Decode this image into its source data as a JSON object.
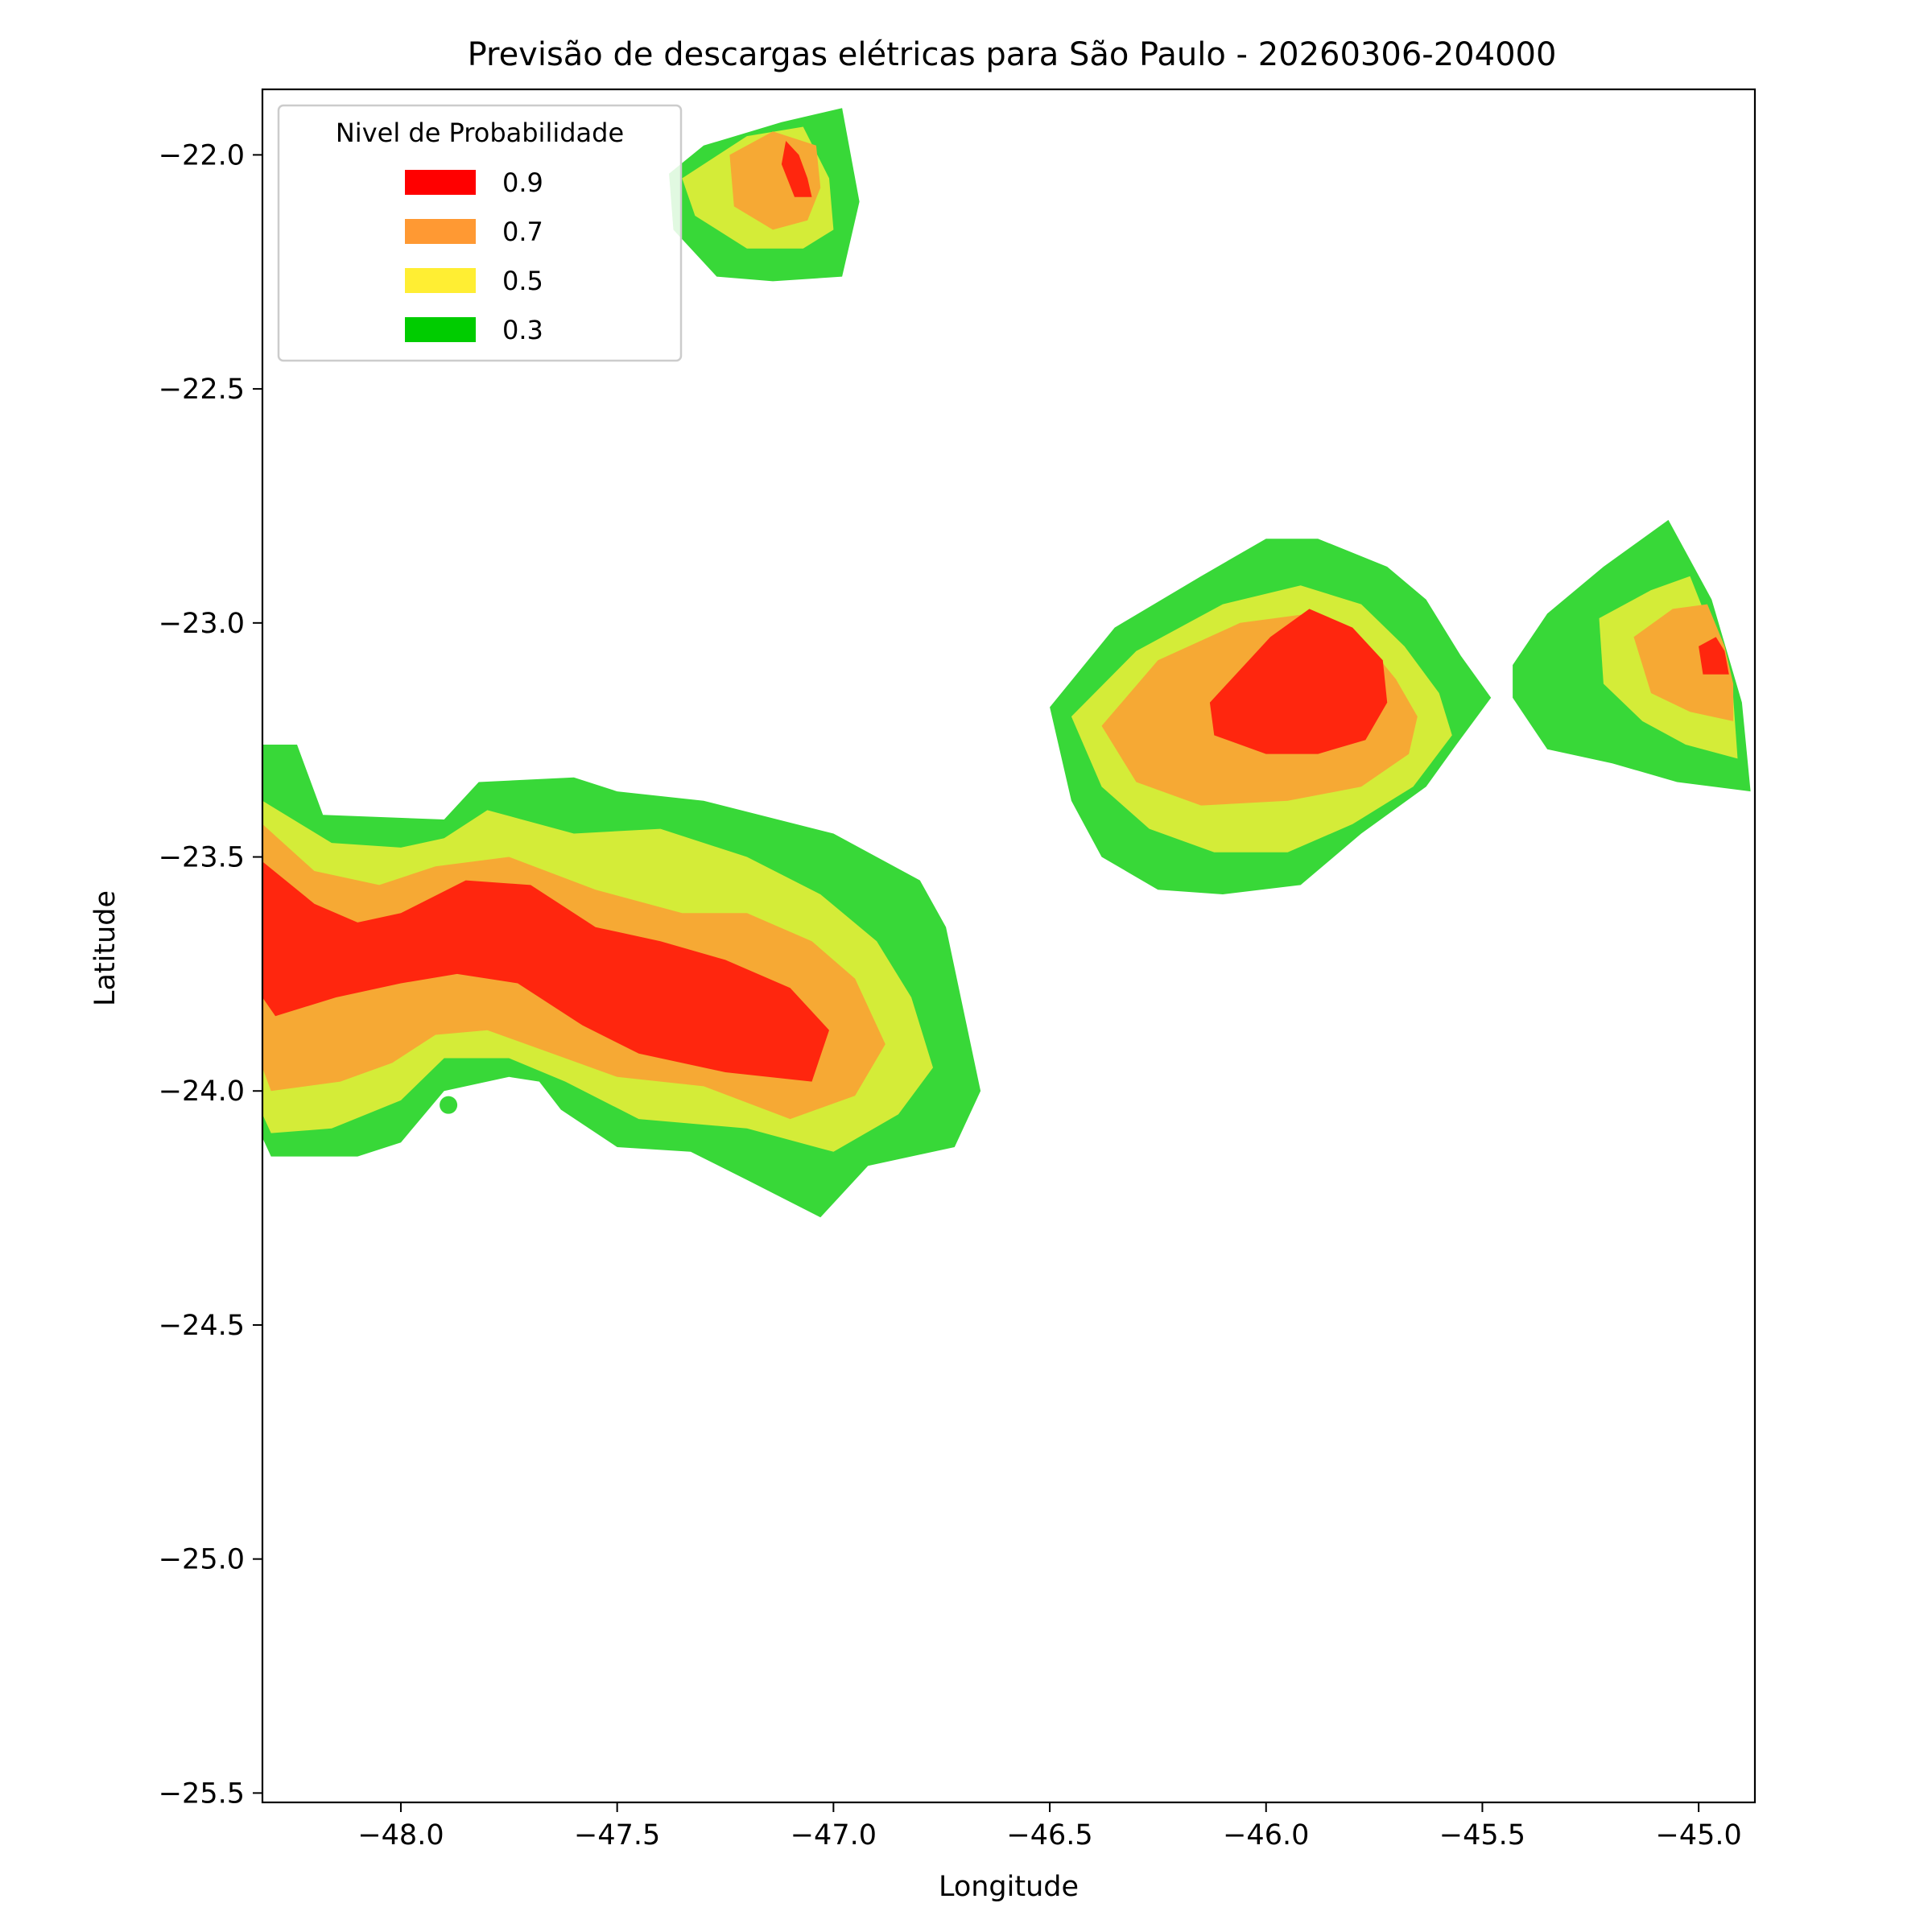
{
  "chart_data": {
    "type": "contour",
    "title": "Previsão de descargas elétricas para São Paulo - 20260306-204000",
    "xlabel": "Longitude",
    "ylabel": "Latitude",
    "xlim": [
      -48.32,
      -44.87
    ],
    "ylim": [
      -25.52,
      -21.86
    ],
    "xticks": [
      -48.0,
      -47.5,
      -47.0,
      -46.5,
      -46.0,
      -45.5,
      -45.0
    ],
    "xtick_labels": [
      "−48.0",
      "−47.5",
      "−47.0",
      "−46.5",
      "−46.0",
      "−45.5",
      "−45.0"
    ],
    "yticks": [
      -22.0,
      -22.5,
      -23.0,
      -23.5,
      -24.0,
      -24.5,
      -25.0,
      -25.5
    ],
    "ytick_labels": [
      "−22.0",
      "−22.5",
      "−23.0",
      "−23.5",
      "−24.0",
      "−24.5",
      "−25.0",
      "−25.5"
    ],
    "grid": false,
    "legend": {
      "title": "Nivel de Probabilidade",
      "placement": "top-left",
      "entries": [
        {
          "label": "0.9",
          "color": "#ff0000"
        },
        {
          "label": "0.7",
          "color": "#ff9933"
        },
        {
          "label": "0.5",
          "color": "#ffee33"
        },
        {
          "label": "0.3",
          "color": "#00cc00"
        }
      ]
    },
    "fill_colors": {
      "0.3": "#38d838",
      "0.5": "#d4ec38",
      "0.7": "#f6a934",
      "0.9": "#ff260e"
    },
    "regions": [
      {
        "name": "west-cell",
        "levels": [
          {
            "level": "0.3",
            "points": [
              [
                -48.32,
                -23.26
              ],
              [
                -48.24,
                -23.26
              ],
              [
                -48.18,
                -23.41
              ],
              [
                -47.9,
                -23.42
              ],
              [
                -47.82,
                -23.34
              ],
              [
                -47.6,
                -23.33
              ],
              [
                -47.5,
                -23.36
              ],
              [
                -47.3,
                -23.38
              ],
              [
                -47.0,
                -23.45
              ],
              [
                -46.8,
                -23.55
              ],
              [
                -46.74,
                -23.65
              ],
              [
                -46.66,
                -24.0
              ],
              [
                -46.72,
                -24.12
              ],
              [
                -46.92,
                -24.16
              ],
              [
                -47.03,
                -24.27
              ],
              [
                -47.2,
                -24.19
              ],
              [
                -47.33,
                -24.13
              ],
              [
                -47.5,
                -24.12
              ],
              [
                -47.63,
                -24.04
              ],
              [
                -47.68,
                -23.98
              ],
              [
                -47.75,
                -23.97
              ],
              [
                -47.9,
                -24.0
              ],
              [
                -48.0,
                -24.11
              ],
              [
                -48.1,
                -24.14
              ],
              [
                -48.3,
                -24.14
              ],
              [
                -48.32,
                -24.1
              ]
            ]
          },
          {
            "level": "0.5",
            "points": [
              [
                -48.32,
                -23.38
              ],
              [
                -48.16,
                -23.47
              ],
              [
                -48.0,
                -23.48
              ],
              [
                -47.9,
                -23.46
              ],
              [
                -47.8,
                -23.4
              ],
              [
                -47.6,
                -23.45
              ],
              [
                -47.4,
                -23.44
              ],
              [
                -47.2,
                -23.5
              ],
              [
                -47.03,
                -23.58
              ],
              [
                -46.9,
                -23.68
              ],
              [
                -46.82,
                -23.8
              ],
              [
                -46.77,
                -23.95
              ],
              [
                -46.85,
                -24.05
              ],
              [
                -47.0,
                -24.13
              ],
              [
                -47.2,
                -24.08
              ],
              [
                -47.45,
                -24.06
              ],
              [
                -47.62,
                -23.98
              ],
              [
                -47.75,
                -23.93
              ],
              [
                -47.9,
                -23.93
              ],
              [
                -48.0,
                -24.02
              ],
              [
                -48.16,
                -24.08
              ],
              [
                -48.3,
                -24.09
              ],
              [
                -48.32,
                -24.05
              ]
            ]
          },
          {
            "level": "0.7",
            "points": [
              [
                -48.32,
                -23.43
              ],
              [
                -48.2,
                -23.53
              ],
              [
                -48.05,
                -23.56
              ],
              [
                -47.92,
                -23.52
              ],
              [
                -47.75,
                -23.5
              ],
              [
                -47.55,
                -23.57
              ],
              [
                -47.35,
                -23.62
              ],
              [
                -47.2,
                -23.62
              ],
              [
                -47.05,
                -23.68
              ],
              [
                -46.95,
                -23.76
              ],
              [
                -46.88,
                -23.9
              ],
              [
                -46.95,
                -24.01
              ],
              [
                -47.1,
                -24.06
              ],
              [
                -47.3,
                -23.99
              ],
              [
                -47.5,
                -23.97
              ],
              [
                -47.65,
                -23.92
              ],
              [
                -47.8,
                -23.87
              ],
              [
                -47.92,
                -23.88
              ],
              [
                -48.02,
                -23.94
              ],
              [
                -48.14,
                -23.98
              ],
              [
                -48.3,
                -24.0
              ],
              [
                -48.32,
                -23.95
              ]
            ]
          },
          {
            "level": "0.9",
            "points": [
              [
                -48.32,
                -23.51
              ],
              [
                -48.2,
                -23.6
              ],
              [
                -48.1,
                -23.64
              ],
              [
                -48.0,
                -23.62
              ],
              [
                -47.85,
                -23.55
              ],
              [
                -47.7,
                -23.56
              ],
              [
                -47.55,
                -23.65
              ],
              [
                -47.4,
                -23.68
              ],
              [
                -47.25,
                -23.72
              ],
              [
                -47.1,
                -23.78
              ],
              [
                -47.01,
                -23.87
              ],
              [
                -47.05,
                -23.98
              ],
              [
                -47.25,
                -23.96
              ],
              [
                -47.45,
                -23.92
              ],
              [
                -47.58,
                -23.86
              ],
              [
                -47.73,
                -23.77
              ],
              [
                -47.87,
                -23.75
              ],
              [
                -48.0,
                -23.77
              ],
              [
                -48.15,
                -23.8
              ],
              [
                -48.29,
                -23.84
              ],
              [
                -48.32,
                -23.8
              ]
            ]
          }
        ]
      },
      {
        "name": "center-cell",
        "levels": [
          {
            "level": "0.3",
            "points": [
              [
                -46.5,
                -23.18
              ],
              [
                -46.35,
                -23.01
              ],
              [
                -46.15,
                -22.9
              ],
              [
                -46.0,
                -22.82
              ],
              [
                -45.88,
                -22.82
              ],
              [
                -45.72,
                -22.88
              ],
              [
                -45.63,
                -22.95
              ],
              [
                -45.55,
                -23.07
              ],
              [
                -45.48,
                -23.16
              ],
              [
                -45.56,
                -23.26
              ],
              [
                -45.63,
                -23.35
              ],
              [
                -45.78,
                -23.45
              ],
              [
                -45.92,
                -23.56
              ],
              [
                -46.1,
                -23.58
              ],
              [
                -46.25,
                -23.57
              ],
              [
                -46.38,
                -23.5
              ],
              [
                -46.45,
                -23.38
              ]
            ]
          },
          {
            "level": "0.5",
            "points": [
              [
                -46.45,
                -23.2
              ],
              [
                -46.3,
                -23.06
              ],
              [
                -46.1,
                -22.96
              ],
              [
                -45.92,
                -22.92
              ],
              [
                -45.78,
                -22.96
              ],
              [
                -45.68,
                -23.05
              ],
              [
                -45.6,
                -23.15
              ],
              [
                -45.57,
                -23.24
              ],
              [
                -45.66,
                -23.35
              ],
              [
                -45.8,
                -23.43
              ],
              [
                -45.95,
                -23.49
              ],
              [
                -46.12,
                -23.49
              ],
              [
                -46.27,
                -23.44
              ],
              [
                -46.38,
                -23.35
              ]
            ]
          },
          {
            "level": "0.7",
            "points": [
              [
                -46.38,
                -23.22
              ],
              [
                -46.25,
                -23.08
              ],
              [
                -46.06,
                -23.0
              ],
              [
                -45.9,
                -22.98
              ],
              [
                -45.78,
                -23.03
              ],
              [
                -45.7,
                -23.12
              ],
              [
                -45.65,
                -23.2
              ],
              [
                -45.67,
                -23.28
              ],
              [
                -45.78,
                -23.35
              ],
              [
                -45.95,
                -23.38
              ],
              [
                -46.15,
                -23.39
              ],
              [
                -46.3,
                -23.34
              ]
            ]
          },
          {
            "level": "0.9",
            "points": [
              [
                -46.13,
                -23.17
              ],
              [
                -46.06,
                -23.1
              ],
              [
                -45.99,
                -23.03
              ],
              [
                -45.9,
                -22.97
              ],
              [
                -45.8,
                -23.01
              ],
              [
                -45.73,
                -23.08
              ],
              [
                -45.72,
                -23.17
              ],
              [
                -45.77,
                -23.25
              ],
              [
                -45.88,
                -23.28
              ],
              [
                -46.0,
                -23.28
              ],
              [
                -46.12,
                -23.24
              ]
            ]
          }
        ]
      },
      {
        "name": "east-cell",
        "levels": [
          {
            "level": "0.3",
            "points": [
              [
                -45.43,
                -23.09
              ],
              [
                -45.35,
                -22.98
              ],
              [
                -45.22,
                -22.88
              ],
              [
                -45.07,
                -22.78
              ],
              [
                -44.97,
                -22.95
              ],
              [
                -44.9,
                -23.17
              ],
              [
                -44.88,
                -23.36
              ],
              [
                -45.05,
                -23.34
              ],
              [
                -45.2,
                -23.3
              ],
              [
                -45.35,
                -23.27
              ],
              [
                -45.43,
                -23.16
              ]
            ]
          },
          {
            "level": "0.5",
            "points": [
              [
                -45.23,
                -22.99
              ],
              [
                -45.11,
                -22.93
              ],
              [
                -45.02,
                -22.9
              ],
              [
                -44.96,
                -23.04
              ],
              [
                -44.92,
                -23.16
              ],
              [
                -44.91,
                -23.29
              ],
              [
                -45.03,
                -23.26
              ],
              [
                -45.13,
                -23.21
              ],
              [
                -45.22,
                -23.13
              ]
            ]
          },
          {
            "level": "0.7",
            "points": [
              [
                -45.15,
                -23.03
              ],
              [
                -45.06,
                -22.97
              ],
              [
                -44.98,
                -22.96
              ],
              [
                -44.94,
                -23.05
              ],
              [
                -44.92,
                -23.13
              ],
              [
                -44.92,
                -23.21
              ],
              [
                -45.02,
                -23.19
              ],
              [
                -45.11,
                -23.15
              ]
            ]
          },
          {
            "level": "0.9",
            "points": [
              [
                -45.0,
                -23.05
              ],
              [
                -44.96,
                -23.03
              ],
              [
                -44.94,
                -23.06
              ],
              [
                -44.93,
                -23.11
              ],
              [
                -44.99,
                -23.11
              ]
            ]
          }
        ]
      },
      {
        "name": "north-cell",
        "levels": [
          {
            "level": "0.3",
            "points": [
              [
                -47.38,
                -22.04
              ],
              [
                -47.3,
                -21.98
              ],
              [
                -47.12,
                -21.93
              ],
              [
                -46.98,
                -21.9
              ],
              [
                -46.94,
                -22.1
              ],
              [
                -46.98,
                -22.26
              ],
              [
                -47.14,
                -22.27
              ],
              [
                -47.27,
                -22.26
              ],
              [
                -47.37,
                -22.16
              ]
            ]
          },
          {
            "level": "0.5",
            "points": [
              [
                -47.35,
                -22.05
              ],
              [
                -47.2,
                -21.96
              ],
              [
                -47.07,
                -21.94
              ],
              [
                -47.01,
                -22.05
              ],
              [
                -47.0,
                -22.16
              ],
              [
                -47.07,
                -22.2
              ],
              [
                -47.2,
                -22.2
              ],
              [
                -47.32,
                -22.13
              ]
            ]
          },
          {
            "level": "0.7",
            "points": [
              [
                -47.24,
                -22.0
              ],
              [
                -47.14,
                -21.95
              ],
              [
                -47.04,
                -21.98
              ],
              [
                -47.03,
                -22.07
              ],
              [
                -47.06,
                -22.14
              ],
              [
                -47.14,
                -22.16
              ],
              [
                -47.23,
                -22.11
              ]
            ]
          },
          {
            "level": "0.9",
            "points": [
              [
                -47.11,
                -21.97
              ],
              [
                -47.08,
                -22.0
              ],
              [
                -47.06,
                -22.05
              ],
              [
                -47.05,
                -22.09
              ],
              [
                -47.09,
                -22.09
              ],
              [
                -47.12,
                -22.02
              ]
            ]
          }
        ]
      }
    ],
    "markers": [
      {
        "level": "0.3",
        "x": -47.89,
        "y": -24.03
      }
    ]
  }
}
